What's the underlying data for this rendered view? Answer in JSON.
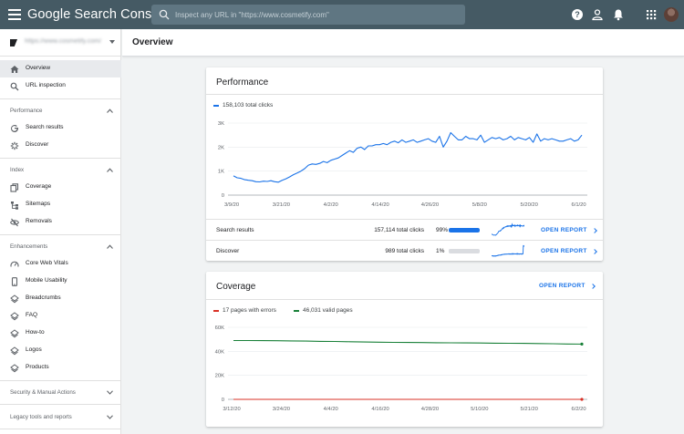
{
  "app": {
    "title": "Google Search Console"
  },
  "search": {
    "placeholder": "Inspect any URL in \"https://www.cosmetify.com\""
  },
  "property": {
    "url": "https://www.cosmetify.com/"
  },
  "page": {
    "title": "Overview"
  },
  "sidebar": {
    "top_items": [
      {
        "label": "Overview",
        "icon": "home-icon",
        "active": true
      },
      {
        "label": "URL inspection",
        "icon": "search-icon",
        "active": false
      }
    ],
    "sections": [
      {
        "label": "Performance",
        "items": [
          {
            "label": "Search results",
            "icon": "google-g-icon"
          },
          {
            "label": "Discover",
            "icon": "asterisk-icon"
          }
        ]
      },
      {
        "label": "Index",
        "items": [
          {
            "label": "Coverage",
            "icon": "file-copy-icon"
          },
          {
            "label": "Sitemaps",
            "icon": "sitemap-icon"
          },
          {
            "label": "Removals",
            "icon": "visibility-off-icon"
          }
        ]
      },
      {
        "label": "Enhancements",
        "items": [
          {
            "label": "Core Web Vitals",
            "icon": "speed-icon"
          },
          {
            "label": "Mobile Usability",
            "icon": "smartphone-icon"
          },
          {
            "label": "Breadcrumbs",
            "icon": "layers-icon"
          },
          {
            "label": "FAQ",
            "icon": "layers-icon"
          },
          {
            "label": "How-to",
            "icon": "layers-icon"
          },
          {
            "label": "Logos",
            "icon": "layers-icon"
          },
          {
            "label": "Products",
            "icon": "layers-icon"
          }
        ]
      }
    ],
    "collapsed_sections": [
      {
        "label": "Security & Manual Actions"
      },
      {
        "label": "Legacy tools and reports"
      }
    ]
  },
  "performance": {
    "title": "Performance",
    "legend": "158,103 total clicks",
    "color": "#1a73e8",
    "rows": [
      {
        "name": "Search results",
        "clicks": "157,114 total clicks",
        "percent": "99%",
        "share": 0.99,
        "bar_color": "#1a73e8",
        "action": "OPEN REPORT"
      },
      {
        "name": "Discover",
        "clicks": "989 total clicks",
        "percent": "1%",
        "share": 0.01,
        "bar_color": "#dadce0",
        "action": "OPEN REPORT"
      }
    ]
  },
  "coverage": {
    "title": "Coverage",
    "action": "OPEN REPORT",
    "legend_errors": "17 pages with errors",
    "legend_valid": "46,031 valid pages",
    "error_color": "#d93025",
    "valid_color": "#188038"
  },
  "chart_data": [
    {
      "type": "line",
      "name": "performance",
      "ylabel": "",
      "xlabel": "",
      "ylim": [
        0,
        3000
      ],
      "yticks": [
        "0",
        "1K",
        "2K",
        "3K"
      ],
      "xticks": [
        "3/9/20",
        "3/21/20",
        "4/2/20",
        "4/14/20",
        "4/26/20",
        "5/8/20",
        "5/20/20",
        "6/1/20"
      ],
      "grid": true,
      "series": [
        {
          "name": "158,103 total clicks",
          "values": [
            800,
            720,
            700,
            640,
            620,
            600,
            560,
            550,
            580,
            570,
            600,
            560,
            540,
            620,
            680,
            760,
            850,
            920,
            1000,
            1100,
            1250,
            1300,
            1280,
            1320,
            1400,
            1350,
            1450,
            1500,
            1550,
            1650,
            1750,
            1850,
            1780,
            1950,
            2000,
            1900,
            2050,
            2050,
            2100,
            2100,
            2150,
            2100,
            2200,
            2250,
            2180,
            2300,
            2200,
            2250,
            2300,
            2200,
            2250,
            2300,
            2350,
            2250,
            2200,
            2450,
            2000,
            2250,
            2600,
            2450,
            2300,
            2300,
            2450,
            2350,
            2350,
            2300,
            2500,
            2200,
            2300,
            2400,
            2350,
            2400,
            2300,
            2350,
            2450,
            2300,
            2400,
            2350,
            2300,
            2400,
            2200,
            2550,
            2250,
            2350,
            2300,
            2350,
            2300,
            2250,
            2250,
            2300,
            2350,
            2250,
            2300,
            2500
          ]
        }
      ]
    },
    {
      "type": "line",
      "name": "coverage",
      "ylabel": "",
      "xlabel": "",
      "ylim": [
        0,
        60000
      ],
      "yticks": [
        "0",
        "20K",
        "40K",
        "60K"
      ],
      "xticks": [
        "3/12/20",
        "3/24/20",
        "4/4/20",
        "4/16/20",
        "4/28/20",
        "5/10/20",
        "5/21/20",
        "6/2/20"
      ],
      "grid": true,
      "series": [
        {
          "name": "46,031 valid pages",
          "values": [
            49000,
            49000,
            48900,
            48800,
            48700,
            48500,
            48300,
            48200,
            48000,
            47800,
            47600,
            47500,
            47400,
            47300,
            47200,
            47100,
            47000,
            46900,
            46800,
            46700,
            46600,
            46500,
            46300,
            46100,
            46031
          ]
        },
        {
          "name": "17 pages with errors",
          "values": [
            17,
            17,
            17,
            17,
            17,
            17,
            17,
            17,
            17,
            17,
            17,
            17,
            17,
            17,
            17,
            17,
            17,
            17,
            17,
            17,
            17,
            17,
            17,
            17,
            17
          ]
        }
      ]
    }
  ]
}
